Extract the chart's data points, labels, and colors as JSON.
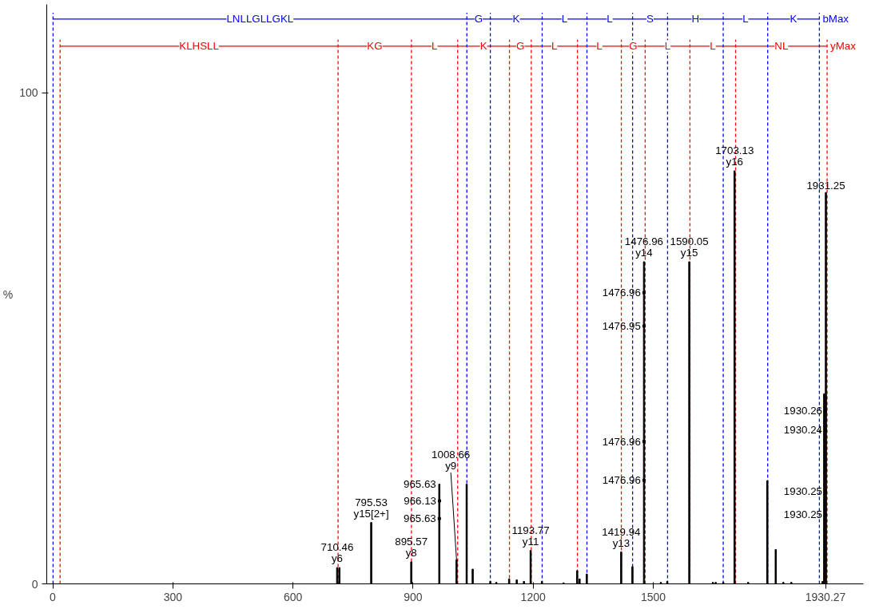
{
  "chart_data": {
    "type": "bar",
    "ylabel": "%",
    "series": [
      {
        "color": "#000000",
        "x": [
          710.46,
          716,
          795.53,
          895.57,
          965.63,
          1008.66,
          1034,
          1049,
          1093,
          1108,
          1140,
          1159,
          1177,
          1193.77,
          1222,
          1276,
          1310,
          1316,
          1334,
          1419.94,
          1448,
          1476.96,
          1519,
          1535,
          1590.05,
          1649,
          1656,
          1675,
          1703.13,
          1737,
          1785,
          1806,
          1825,
          1845,
          1923,
          1927,
          1931.25
        ],
        "values": [
          3.3,
          3.3,
          12.5,
          4.5,
          20.3,
          4.9,
          20.3,
          3.0,
          0.5,
          0.3,
          1.0,
          0.8,
          0.5,
          6.8,
          0.5,
          0.2,
          2.7,
          1.0,
          2.0,
          6.5,
          3.5,
          65.6,
          0.3,
          0.5,
          65.6,
          0.3,
          0.3,
          0.3,
          84.1,
          0.3,
          21.0,
          7.0,
          0.3,
          0.3,
          0.5,
          38.7,
          79.7
        ]
      },
      {
        "type": "scatter",
        "color": "#000000",
        "marker": "square",
        "x": [
          1476.96,
          1476.95,
          1476.96,
          1476.96,
          966.13,
          965.63,
          1930.26,
          1930.24,
          1930.25,
          1930.25
        ],
        "values": [
          59.3,
          52.5,
          29.0,
          21.1,
          16.9,
          13.3,
          35.2,
          31.3,
          18.9,
          14.1
        ]
      },
      {
        "type": "line",
        "color": "#0000ff",
        "x": [
          0.8,
          1915
        ],
        "values": [
          115,
          115
        ]
      },
      {
        "type": "line",
        "color": "#ff0000",
        "x": [
          18.3,
          1934.3
        ],
        "values": [
          109.5,
          109.5
        ]
      }
    ],
    "xlim": [
      -15,
      2025
    ],
    "ylim": [
      0,
      118
    ],
    "xticks": [
      0,
      300,
      600,
      900,
      1200,
      1500,
      1930.27
    ],
    "yticks": [
      0,
      100
    ],
    "grid": false,
    "ref_lines": [
      {
        "axis": "x",
        "value": 0.8,
        "label": null,
        "color": "#0000ff",
        "line_style": "dashed"
      },
      {
        "axis": "x",
        "value": 1034.4,
        "label": "LNLLGLLGKL",
        "color": "#0000ff",
        "line_style": "dashed"
      },
      {
        "axis": "x",
        "value": 1093,
        "label": "G",
        "color": "#0000ff",
        "line_style": "dashed"
      },
      {
        "axis": "x",
        "value": 1222.5,
        "label": "K",
        "color": "#0000ff",
        "line_style": "dashed"
      },
      {
        "axis": "x",
        "value": 1334.4,
        "label": "L",
        "color": "#0000ff",
        "line_style": "dashed"
      },
      {
        "axis": "x",
        "value": 1448.4,
        "label": "L",
        "color": "#0000ff",
        "line_style": "dashed"
      },
      {
        "axis": "x",
        "value": 1535.8,
        "label": "S",
        "color": "#0000ff",
        "line_style": "dashed"
      },
      {
        "axis": "x",
        "value": 1674.8,
        "label": "H",
        "color": "#0000ff",
        "line_style": "dashed"
      },
      {
        "axis": "x",
        "value": 1785.9,
        "label": "L",
        "color": "#0000ff",
        "line_style": "dashed"
      },
      {
        "axis": "x",
        "value": 1915,
        "label": "K",
        "color": "#0000ff",
        "line_style": "dashed"
      },
      {
        "axis": "x",
        "value": 18.3,
        "label": null,
        "color": "#ff0000",
        "line_style": "dashed"
      },
      {
        "axis": "x",
        "value": 712.7,
        "label": "KLHSLL",
        "color": "#ff0000",
        "line_style": "dashed"
      },
      {
        "axis": "x",
        "value": 896,
        "label": "KG",
        "color": "#ff0000",
        "line_style": "dashed"
      },
      {
        "axis": "x",
        "value": 1011.5,
        "label": "L",
        "color": "#ff0000",
        "line_style": "dashed"
      },
      {
        "axis": "x",
        "value": 1140.8,
        "label": "K",
        "color": "#ff0000",
        "line_style": "dashed"
      },
      {
        "axis": "x",
        "value": 1195.3,
        "label": "G",
        "color": "#ff0000",
        "line_style": "dashed"
      },
      {
        "axis": "x",
        "value": 1310.6,
        "label": "L",
        "color": "#ff0000",
        "line_style": "dashed"
      },
      {
        "axis": "x",
        "value": 1420.3,
        "label": "L",
        "color": "#ff0000",
        "line_style": "dashed"
      },
      {
        "axis": "x",
        "value": 1479.9,
        "label": "G",
        "color": "#ff0000",
        "line_style": "dashed"
      },
      {
        "axis": "x",
        "value": 1591.7,
        "label": "L",
        "color": "#ff0000",
        "line_style": "dashed"
      },
      {
        "axis": "x",
        "value": 1705.7,
        "label": "L",
        "color": "#ff0000",
        "line_style": "dashed"
      },
      {
        "axis": "x",
        "value": 1934.3,
        "label": "NL",
        "color": "#ff0000",
        "line_style": "dashed"
      }
    ],
    "annotations": [
      "bMax",
      "yMax",
      {
        "text": "1703.13",
        "x": 1703.13,
        "y": 84.1
      },
      {
        "text": "y16",
        "x": 1703.13,
        "y": 84.1
      },
      {
        "text": "1931.25",
        "x": 1931.25,
        "y": 79.7
      },
      {
        "text": "1476.96",
        "x": 1476.96,
        "y": 65.6
      },
      {
        "text": "y14",
        "x": 1476.96,
        "y": 65.6
      },
      {
        "text": "1590.05",
        "x": 1590.05,
        "y": 65.6
      },
      {
        "text": "y15",
        "x": 1590.05,
        "y": 65.6
      },
      {
        "text": "1476.96",
        "x": 1476.96,
        "y": 59.3
      },
      {
        "text": "1476.95",
        "x": 1476.95,
        "y": 52.5
      },
      {
        "text": "1930.26",
        "x": 1930.26,
        "y": 35.2
      },
      {
        "text": "1930.24",
        "x": 1930.24,
        "y": 31.3
      },
      {
        "text": "1476.96",
        "x": 1476.96,
        "y": 29.0
      },
      {
        "text": "1008.66",
        "x": 1008.66,
        "y": 4.9
      },
      {
        "text": "y9",
        "x": 1008.66,
        "y": 4.9
      },
      {
        "text": "1476.96",
        "x": 1476.96,
        "y": 21.1
      },
      {
        "text": "965.63",
        "x": 965.63,
        "y": 20.3
      },
      {
        "text": "966.13",
        "x": 966.13,
        "y": 16.9
      },
      {
        "text": "1930.25",
        "x": 1930.25,
        "y": 18.9
      },
      {
        "text": "965.63",
        "x": 965.63,
        "y": 13.3
      },
      {
        "text": "1930.25",
        "x": 1930.25,
        "y": 14.1
      },
      {
        "text": "1193.77",
        "x": 1193.77,
        "y": 6.8
      },
      {
        "text": "y11",
        "x": 1193.77,
        "y": 6.8
      },
      {
        "text": "795.53",
        "x": 795.53,
        "y": 12.5
      },
      {
        "text": "y15[2+]",
        "x": 795.53,
        "y": 12.5
      },
      {
        "text": "895.57",
        "x": 895.57,
        "y": 4.5
      },
      {
        "text": "y8",
        "x": 895.57,
        "y": 4.5
      },
      {
        "text": "1419.94",
        "x": 1419.94,
        "y": 6.5
      },
      {
        "text": "y13",
        "x": 1419.94,
        "y": 6.5
      },
      {
        "text": "710.46",
        "x": 710.46,
        "y": 3.3
      },
      {
        "text": "y6",
        "x": 710.46,
        "y": 3.3
      }
    ]
  }
}
